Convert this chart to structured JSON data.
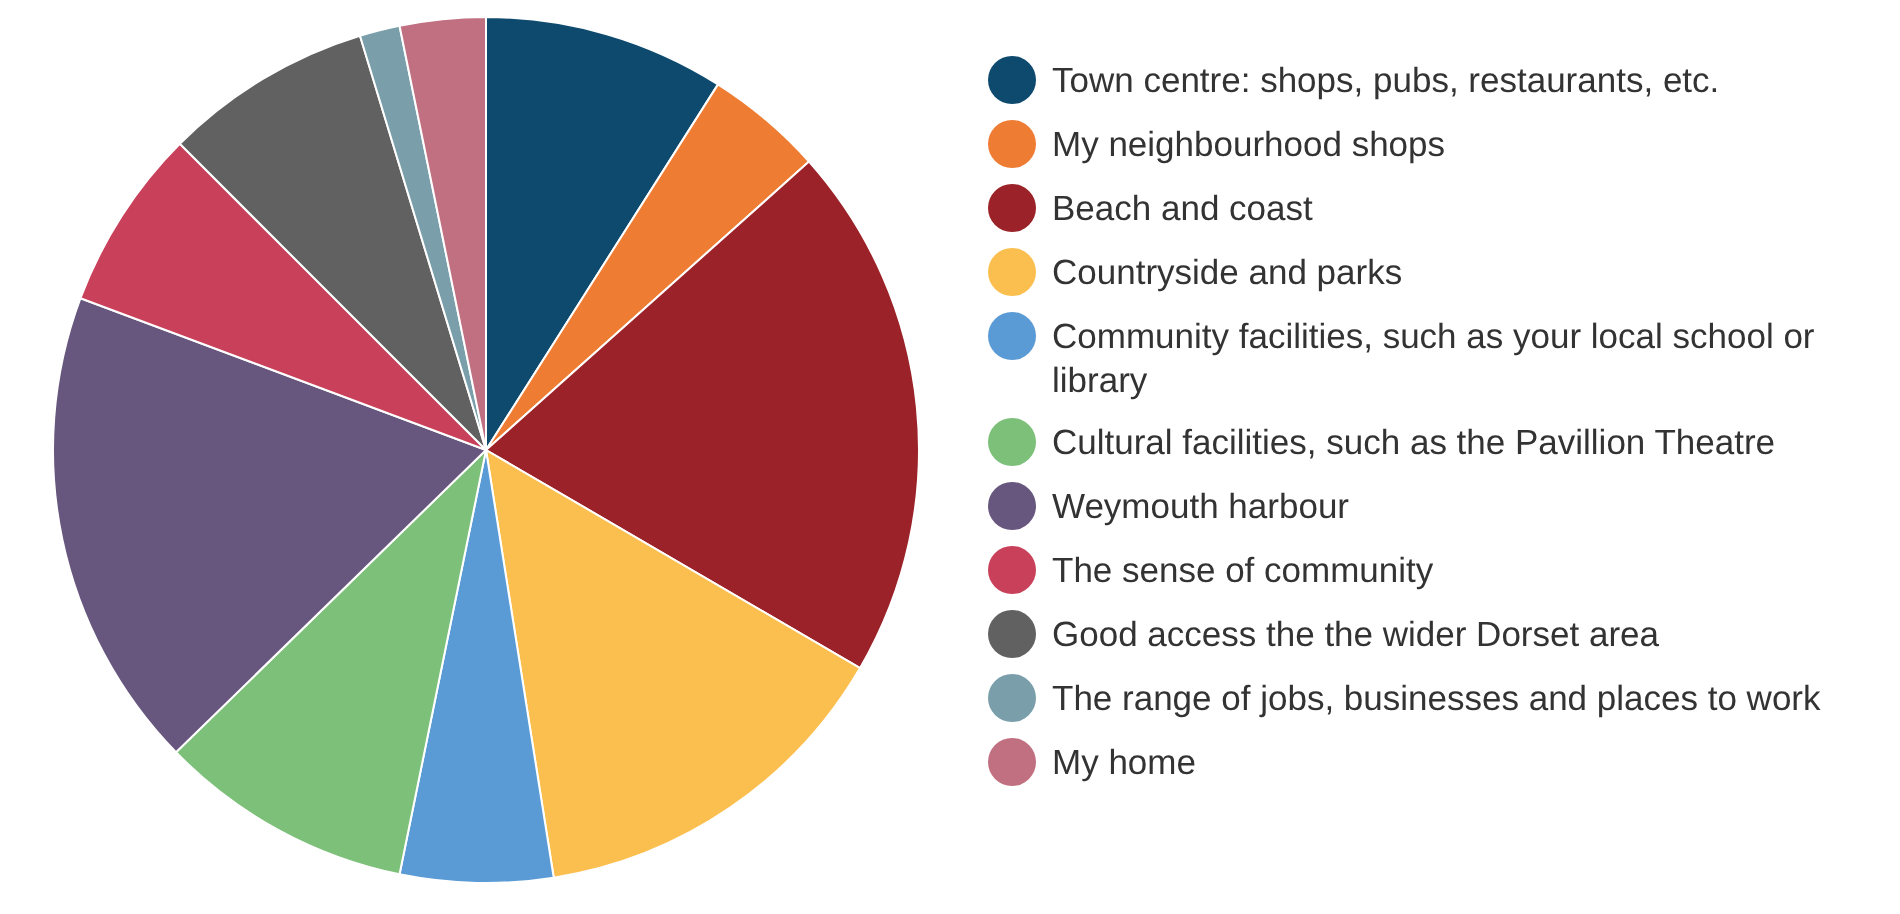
{
  "chart_data": {
    "type": "pie",
    "categories": [
      "Town centre: shops, pubs, restaurants, etc.",
      "My neighbourhood shops",
      "Beach and coast",
      "Countryside and parks",
      "Community facilities, such as your local school or library",
      "Cultural facilities, such as the Pavillion Theatre",
      "Weymouth harbour",
      "The sense of community",
      "Good access the the wider Dorset area",
      "The range of jobs, businesses and places to work",
      "My home"
    ],
    "values": [
      9.0,
      4.4,
      20.0,
      14.1,
      5.7,
      9.5,
      18.0,
      6.8,
      7.8,
      1.5,
      3.2
    ],
    "colors": [
      "#0e4a6e",
      "#ee7d33",
      "#9a2228",
      "#fbbf4f",
      "#5a9bd5",
      "#7cc07a",
      "#67577e",
      "#c8405a",
      "#616161",
      "#7a9fab",
      "#c07080"
    ],
    "legend": "right"
  }
}
